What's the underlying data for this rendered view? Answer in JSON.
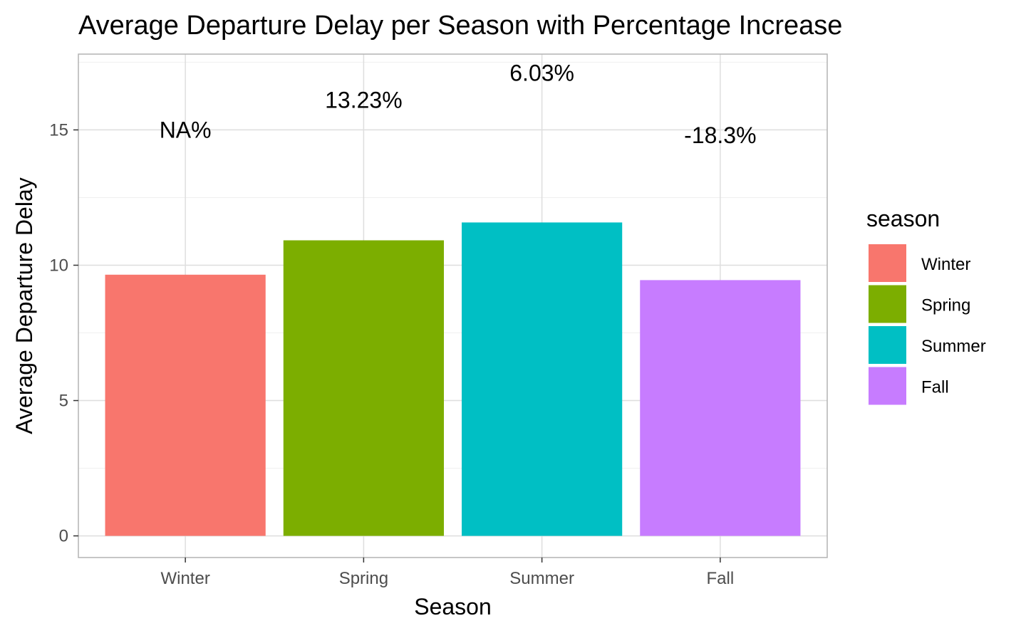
{
  "chart_data": {
    "type": "bar",
    "title": "Average Departure Delay per Season with Percentage Increase",
    "xlabel": "Season",
    "ylabel": "Average Departure Delay",
    "categories": [
      "Winter",
      "Spring",
      "Summer",
      "Fall"
    ],
    "values": [
      9.65,
      10.92,
      11.58,
      9.45
    ],
    "bar_labels": [
      "NA%",
      "13.23%",
      "6.03%",
      "-18.3%"
    ],
    "bar_label_y": [
      15.0,
      16.1,
      17.1,
      14.8
    ],
    "ylim": [
      -0.8,
      17.8
    ],
    "yticks": [
      0,
      5,
      10,
      15
    ],
    "colors": [
      "#F8766D",
      "#7CAE00",
      "#00BFC4",
      "#C77CFF"
    ],
    "legend": {
      "title": "season",
      "entries": [
        "Winter",
        "Spring",
        "Summer",
        "Fall"
      ],
      "placement": "right"
    },
    "grid": true
  }
}
